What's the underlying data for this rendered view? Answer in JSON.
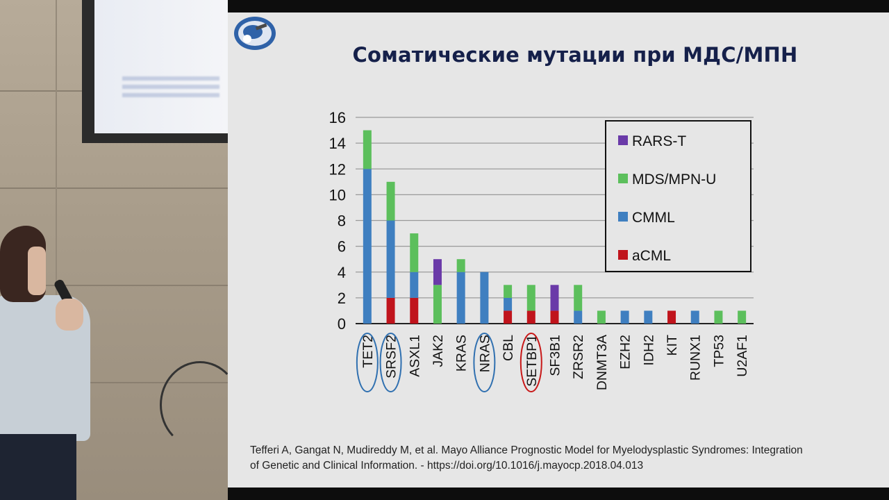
{
  "slide": {
    "title": "Соматические мутации при МДС/МПН",
    "reference_line1": "Tefferi A, Gangat N, Mudireddy M, et al. Mayo Alliance Prognostic Model for Myelodysplastic Syndromes: Integration",
    "reference_line2": "of Genetic and Clinical Information. -  https://doi.org/10.1016/j.mayocp.2018.04.013"
  },
  "colors": {
    "aCML": "#c0141c",
    "CMML": "#3f7fc0",
    "MDS/MPN-U": "#5cbf5c",
    "RARS-T": "#6a3aa8",
    "highlight_blue": "#3070b0",
    "highlight_red": "#c81818"
  },
  "chart_data": {
    "type": "bar",
    "stacked": true,
    "categories": [
      "TET2",
      "SRSF2",
      "ASXL1",
      "JAK2",
      "KRAS",
      "NRAS",
      "CBL",
      "SETBP1",
      "SF3B1",
      "ZRSR2",
      "DNMT3A",
      "EZH2",
      "IDH2",
      "KIT",
      "RUNX1",
      "TP53",
      "U2AF1"
    ],
    "series": [
      {
        "name": "aCML",
        "values": [
          0,
          2,
          2,
          0,
          0,
          0,
          1,
          1,
          1,
          0,
          0,
          0,
          0,
          1,
          0,
          0,
          0
        ]
      },
      {
        "name": "CMML",
        "values": [
          12,
          6,
          2,
          0,
          4,
          4,
          1,
          0,
          0,
          1,
          0,
          1,
          1,
          0,
          1,
          0,
          0
        ]
      },
      {
        "name": "MDS/MPN-U",
        "values": [
          3,
          3,
          3,
          3,
          1,
          0,
          1,
          2,
          0,
          2,
          1,
          0,
          0,
          0,
          0,
          1,
          1
        ]
      },
      {
        "name": "RARS-T",
        "values": [
          0,
          0,
          0,
          2,
          0,
          0,
          0,
          0,
          2,
          0,
          0,
          0,
          0,
          0,
          0,
          0,
          0
        ]
      }
    ],
    "legend_order": [
      "RARS-T",
      "MDS/MPN-U",
      "CMML",
      "aCML"
    ],
    "legend_position": "top-right",
    "ylim": [
      0,
      16
    ],
    "yticks": [
      0,
      2,
      4,
      6,
      8,
      10,
      12,
      14,
      16
    ],
    "grid": true,
    "highlighted_categories": {
      "blue": [
        "TET2",
        "SRSF2",
        "NRAS"
      ],
      "red": [
        "SETBP1"
      ]
    },
    "title": "",
    "xlabel": "",
    "ylabel": ""
  }
}
